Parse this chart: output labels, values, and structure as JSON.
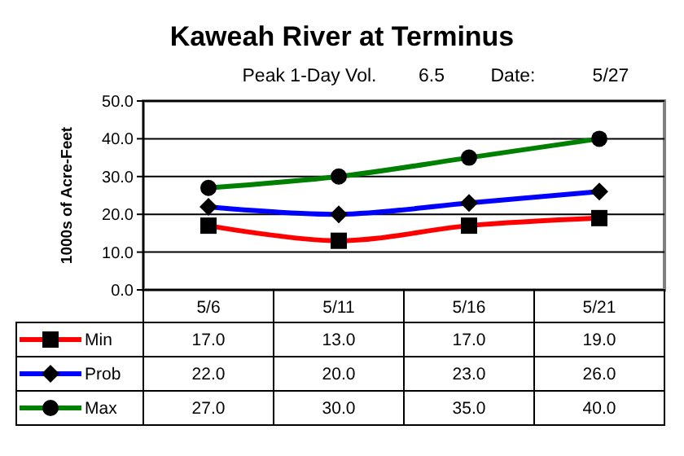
{
  "chart_data": {
    "type": "line",
    "title": "Kaweah River at Terminus",
    "ylabel": "1000s of Acre-Feet",
    "annotations": [
      "Peak 1-Day Vol.",
      "6.5",
      "Date:",
      "5/27"
    ],
    "categories": [
      "5/6",
      "5/11",
      "5/16",
      "5/21"
    ],
    "series": [
      {
        "name": "Min",
        "color": "#ff0000",
        "marker": "square",
        "values": [
          17,
          13,
          17,
          19
        ],
        "value_labels": [
          "17.0",
          "13.0",
          "17.0",
          "19.0"
        ]
      },
      {
        "name": "Prob",
        "color": "#0000ff",
        "marker": "diamond",
        "values": [
          22,
          20,
          23,
          26
        ],
        "value_labels": [
          "22.0",
          "20.0",
          "23.0",
          "26.0"
        ]
      },
      {
        "name": "Max",
        "color": "#008000",
        "marker": "circle",
        "values": [
          27,
          30,
          35,
          40
        ],
        "value_labels": [
          "27.0",
          "30.0",
          "35.0",
          "40.0"
        ]
      }
    ],
    "ylim": [
      0,
      50
    ],
    "yticks": [
      {
        "value": 0,
        "label": "0.0"
      },
      {
        "value": 10,
        "label": "10.0"
      },
      {
        "value": 20,
        "label": "20.0"
      },
      {
        "value": 30,
        "label": "30.0"
      },
      {
        "value": 40,
        "label": "40.0"
      },
      {
        "value": 50,
        "label": "50.0"
      }
    ],
    "grid": "y",
    "legend": "bottom"
  }
}
